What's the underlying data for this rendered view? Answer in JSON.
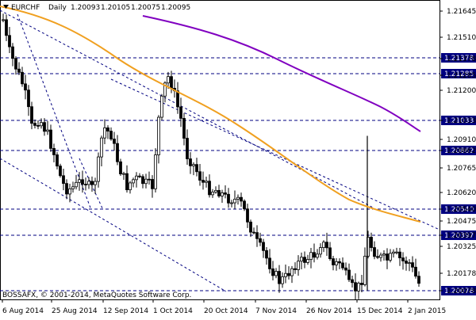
{
  "chart_window": {
    "header": {
      "symbol": "EURCHF",
      "timeframe": "Daily",
      "ohlc": [
        "1.20093",
        "1.20105",
        "1.20075",
        "1.20095"
      ]
    },
    "copyright": "BOSSAFX, © 2001-2014, MetaQuotes Software Corp.",
    "colors": {
      "background": "#ffffff",
      "candles": "#000000",
      "ma_fast": "#f0a020",
      "ma_slow": "#8000c0",
      "levels": "#000080",
      "trendlines": "#000080",
      "price_tags": "#000080"
    },
    "icons": {
      "dropdown": "triangle-down-icon"
    }
  },
  "chart_data": {
    "type": "candlestick",
    "x_axis_labels": [
      "6 Aug 2014",
      "25 Aug 2014",
      "12 Sep 2014",
      "1 Oct 2014",
      "20 Oct 2014",
      "7 Nov 2014",
      "26 Nov 2014",
      "15 Dec 2014",
      "2 Jan 2015"
    ],
    "y_axis_labels": [
      "1.21645",
      "1.21510",
      "1.21378",
      "1.21285",
      "1.21200",
      "1.21033",
      "1.20910",
      "1.20862",
      "1.20765",
      "1.20620",
      "1.20540",
      "1.20475",
      "1.20397",
      "1.20325",
      "1.20178",
      "1.20078"
    ],
    "ylim": [
      1.2003,
      1.2171
    ],
    "horizontal_levels": [
      1.21378,
      1.21285,
      1.21033,
      1.20862,
      1.2054,
      1.20397,
      1.20078
    ],
    "level_labels": [
      "1.21378",
      "1.21285",
      "1.21033",
      "1.20862",
      "1.20540",
      "1.20397",
      "1.20078"
    ],
    "spike": {
      "date": "15 Dec 2014",
      "high": 1.2095,
      "low": 1.2008
    }
  }
}
